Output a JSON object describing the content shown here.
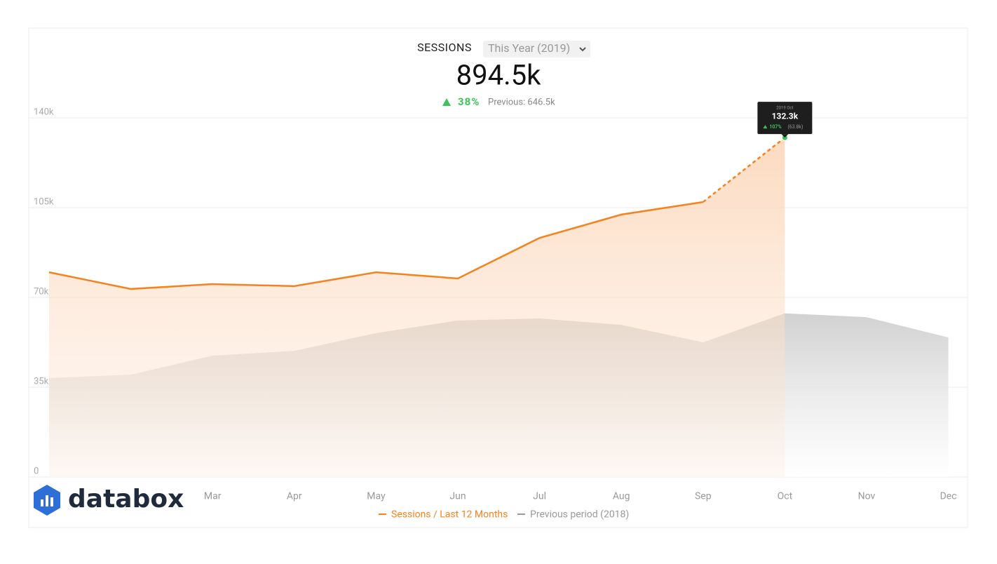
{
  "chart_data": {
    "type": "line",
    "title": "SESSIONS",
    "period_selector": "This Year (2019)",
    "summary_value": "894.5k",
    "summary_change": "38%",
    "summary_previous": "Previous: 646.5k",
    "brand": "databox",
    "categories": [
      null,
      null,
      "Mar",
      "Apr",
      "May",
      "Jun",
      "Jul",
      "Aug",
      "Sep",
      "Oct",
      "Nov",
      "Dec"
    ],
    "series": [
      {
        "name": "Sessions / Last 12 Months",
        "color": "#f5821f",
        "values": [
          79800,
          73300,
          75200,
          74400,
          79800,
          77400,
          93200,
          102300,
          107200,
          132300,
          null,
          null
        ]
      },
      {
        "name": "Previous period (2018)",
        "color": "#9a9a9a",
        "values": [
          38600,
          39900,
          47300,
          49200,
          56100,
          61000,
          61800,
          59300,
          52500,
          63800,
          62300,
          54400
        ]
      }
    ],
    "dashed_last_segment": true,
    "ylim": [
      0,
      140000
    ],
    "yticks": [
      0,
      {
        "value": 35000,
        "label": "35k"
      },
      {
        "value": 70000,
        "label": "70k"
      },
      {
        "value": 105000,
        "label": "105k"
      },
      {
        "value": 140000,
        "label": "140k"
      }
    ],
    "grid": true,
    "tooltip": {
      "date": "2019 Oct",
      "value": "132.3k",
      "change": "107%",
      "previous": "(63.8k)"
    }
  }
}
